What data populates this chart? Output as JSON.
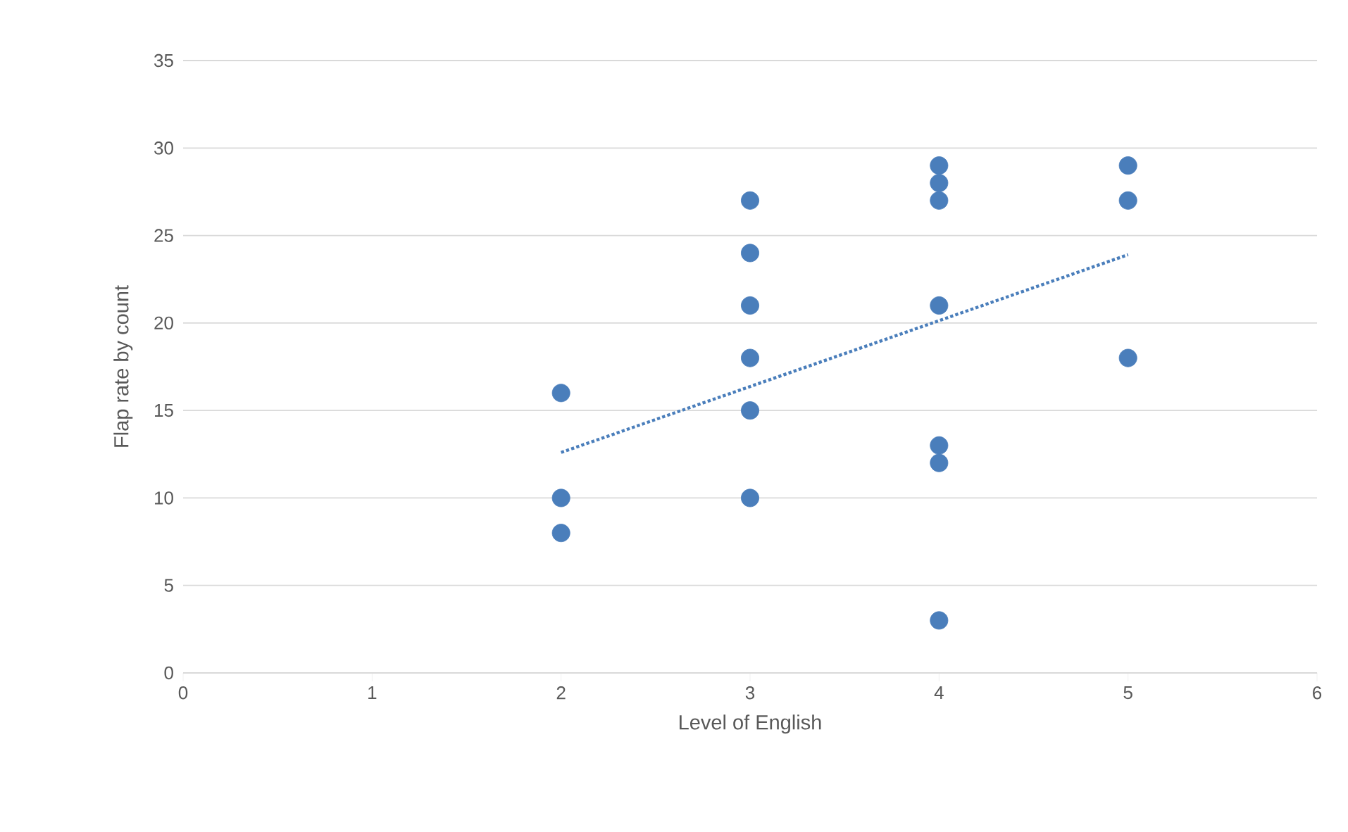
{
  "chart_data": {
    "type": "scatter",
    "xlabel": "Level of English",
    "ylabel": "Flap rate by count",
    "xlim": [
      0,
      6
    ],
    "xticks": [
      0,
      1,
      2,
      3,
      4,
      5,
      6
    ],
    "ylim": [
      0,
      35
    ],
    "yticks": [
      0,
      5,
      10,
      15,
      20,
      25,
      30,
      35
    ],
    "grid": "y",
    "series": [
      {
        "color": "#4a7ebb",
        "marker": "circle",
        "x": [
          2,
          2,
          2,
          3,
          3,
          3,
          3,
          3,
          3,
          4,
          4,
          4,
          4,
          4,
          4,
          4,
          5,
          5,
          5
        ],
        "values": [
          16,
          10,
          8,
          27,
          24,
          21,
          18,
          15,
          10,
          29,
          28,
          27,
          21,
          13,
          12,
          3,
          29,
          27,
          18
        ]
      },
      {
        "type": "line",
        "color": "#4a7ebb",
        "marker": "none",
        "line_style": "dotted",
        "x": [
          2,
          5
        ],
        "values": [
          12.6,
          23.9
        ]
      }
    ]
  }
}
